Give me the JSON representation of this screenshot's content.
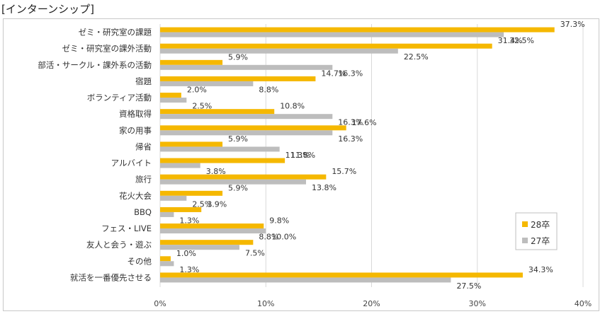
{
  "title": "[インターンシップ]",
  "colors": {
    "series_28": "#F5B800",
    "series_27": "#BDBDBD",
    "grid": "#D9D9D9"
  },
  "chart_data": {
    "type": "bar",
    "orientation": "horizontal",
    "title": "",
    "xlabel": "",
    "ylabel": "",
    "xlim": [
      0,
      40
    ],
    "x_ticks": [
      "0%",
      "10%",
      "20%",
      "30%",
      "40%"
    ],
    "value_suffix": "%",
    "grid": true,
    "legend_position": "right",
    "categories": [
      "ゼミ・研究室の課題",
      "ゼミ・研究室の課外活動",
      "部活・サークル・課外系の活動",
      "宿題",
      "ボランティア活動",
      "資格取得",
      "家の用事",
      "帰省",
      "アルバイト",
      "旅行",
      "花火大会",
      "BBQ",
      "フェス・LIVE",
      "友人と会う・遊ぶ",
      "その他",
      "就活を一番優先させる"
    ],
    "series": [
      {
        "name": "28卒",
        "color": "#F5B800",
        "values": [
          37.3,
          31.4,
          5.9,
          14.7,
          2.0,
          10.8,
          17.6,
          5.9,
          11.8,
          15.7,
          5.9,
          3.9,
          9.8,
          8.8,
          1.0,
          34.3
        ]
      },
      {
        "name": "27卒",
        "color": "#BDBDBD",
        "values": [
          32.5,
          22.5,
          16.3,
          8.8,
          2.5,
          16.3,
          16.3,
          11.3,
          3.8,
          13.8,
          2.5,
          1.3,
          10.0,
          7.5,
          1.3,
          27.5
        ]
      }
    ]
  }
}
